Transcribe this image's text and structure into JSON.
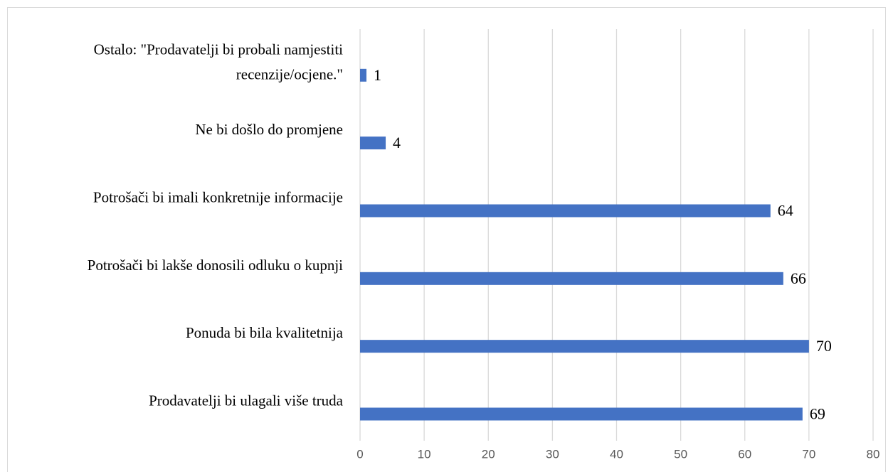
{
  "chart_data": {
    "type": "bar",
    "orientation": "horizontal",
    "categories": [
      "Ostalo: \"Prodavatelji bi probali namjestiti recenzije/ocjene.\"",
      "Ne bi došlo do promjene",
      "Potrošači bi imali konkretnije informacije",
      "Potrošači bi lakše donosili odluku o kupnji",
      "Ponuda bi bila kvalitetnija",
      "Prodavatelji bi ulagali više truda"
    ],
    "values": [
      1,
      4,
      64,
      66,
      70,
      69
    ],
    "color": "#4472c4",
    "xlim": [
      0,
      80
    ],
    "xticks": [
      0,
      10,
      20,
      30,
      40,
      50,
      60,
      70,
      80
    ],
    "grid": true
  }
}
